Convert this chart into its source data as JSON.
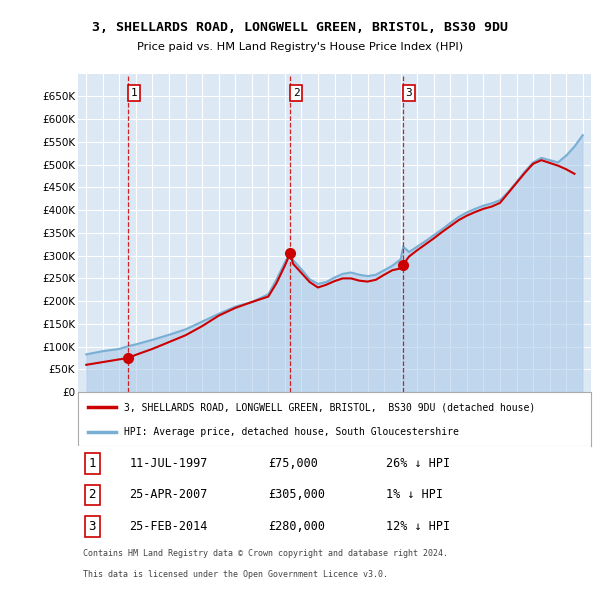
{
  "title": "3, SHELLARDS ROAD, LONGWELL GREEN, BRISTOL, BS30 9DU",
  "subtitle": "Price paid vs. HM Land Registry's House Price Index (HPI)",
  "legend_property": "3, SHELLARDS ROAD, LONGWELL GREEN, BRISTOL,  BS30 9DU (detached house)",
  "legend_hpi": "HPI: Average price, detached house, South Gloucestershire",
  "transactions": [
    {
      "num": 1,
      "date": "11-JUL-1997",
      "price": 75000,
      "rel": "26% ↓ HPI",
      "x": 1997.53
    },
    {
      "num": 2,
      "date": "25-APR-2007",
      "price": 305000,
      "rel": "1% ↓ HPI",
      "x": 2007.32
    },
    {
      "num": 3,
      "date": "25-FEB-2014",
      "price": 280000,
      "rel": "12% ↓ HPI",
      "x": 2014.15
    }
  ],
  "footer1": "Contains HM Land Registry data © Crown copyright and database right 2024.",
  "footer2": "This data is licensed under the Open Government Licence v3.0.",
  "hpi_color": "#a8c8e8",
  "hpi_line_color": "#7aafd4",
  "price_color": "#cc0000",
  "dashed_color": "#cc0000",
  "plot_bg": "#dce9f5",
  "grid_color": "#ffffff",
  "ylim": [
    0,
    700000
  ],
  "yticks": [
    0,
    50000,
    100000,
    150000,
    200000,
    250000,
    300000,
    350000,
    400000,
    450000,
    500000,
    550000,
    600000,
    650000
  ],
  "xlim_left": 1994.5,
  "xlim_right": 2025.5,
  "hpi_data_x": [
    1995,
    1996,
    1997,
    1997.53,
    1998,
    1999,
    2000,
    2001,
    2002,
    2003,
    2004,
    2005,
    2006,
    2006.5,
    2007,
    2007.32,
    2007.5,
    2008,
    2008.5,
    2009,
    2009.5,
    2010,
    2010.5,
    2011,
    2011.5,
    2012,
    2012.5,
    2013,
    2013.5,
    2014,
    2014.15,
    2014.5,
    2015,
    2015.5,
    2016,
    2016.5,
    2017,
    2017.5,
    2018,
    2018.5,
    2019,
    2019.5,
    2020,
    2020.5,
    2021,
    2021.5,
    2022,
    2022.5,
    2023,
    2023.5,
    2024,
    2024.5,
    2025
  ],
  "hpi_data_y": [
    83000,
    90000,
    95000,
    101000,
    105000,
    115000,
    126000,
    138000,
    155000,
    172000,
    188000,
    198000,
    215000,
    248000,
    285000,
    308000,
    290000,
    270000,
    248000,
    238000,
    242000,
    252000,
    260000,
    263000,
    258000,
    255000,
    258000,
    268000,
    278000,
    292000,
    320000,
    308000,
    320000,
    332000,
    345000,
    358000,
    372000,
    385000,
    395000,
    403000,
    410000,
    415000,
    422000,
    440000,
    462000,
    485000,
    505000,
    515000,
    510000,
    505000,
    520000,
    540000,
    565000
  ],
  "price_data_x": [
    1995,
    1996,
    1997,
    1997.53,
    1998,
    1999,
    2000,
    2001,
    2002,
    2003,
    2004,
    2005,
    2006,
    2006.5,
    2007,
    2007.32,
    2007.5,
    2008,
    2008.5,
    2009,
    2009.5,
    2010,
    2010.5,
    2011,
    2011.5,
    2012,
    2012.5,
    2013,
    2013.5,
    2014,
    2014.15,
    2014.5,
    2015,
    2015.5,
    2016,
    2016.5,
    2017,
    2017.5,
    2018,
    2018.5,
    2019,
    2019.5,
    2020,
    2020.5,
    2021,
    2021.5,
    2022,
    2022.5,
    2023,
    2023.5,
    2024,
    2024.5
  ],
  "price_data_y": [
    60000,
    66000,
    72000,
    75000,
    82000,
    95000,
    110000,
    125000,
    145000,
    168000,
    185000,
    198000,
    210000,
    240000,
    278000,
    305000,
    282000,
    262000,
    242000,
    230000,
    236000,
    244000,
    250000,
    250000,
    245000,
    243000,
    247000,
    258000,
    268000,
    272000,
    280000,
    298000,
    312000,
    325000,
    338000,
    352000,
    365000,
    378000,
    388000,
    396000,
    403000,
    408000,
    416000,
    438000,
    460000,
    482000,
    502000,
    510000,
    504000,
    498000,
    490000,
    480000
  ]
}
